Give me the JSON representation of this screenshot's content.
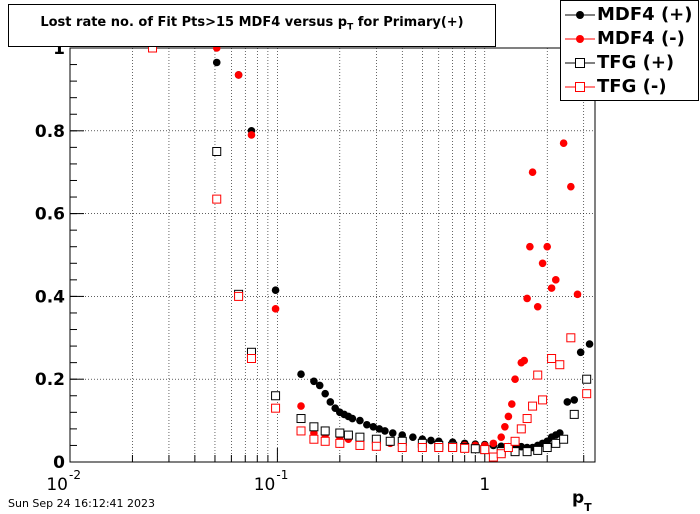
{
  "title": "Lost rate no. of Fit Pts>15 MDF4 versus p",
  "title_sub": "T",
  "title_suffix": " for Primary(+)",
  "timestamp": "Sun Sep 24 16:12:41 2023",
  "xaxis_label": "p",
  "xaxis_sub": "T",
  "chart_data": {
    "type": "scatter",
    "x_scale": "log",
    "xlim": [
      0.01,
      3.4
    ],
    "ylim": [
      0,
      1.0
    ],
    "grid": true,
    "legend_position": "top-right",
    "y_ticks": [
      {
        "value": 0,
        "label": "0"
      },
      {
        "value": 0.2,
        "label": "0.2"
      },
      {
        "value": 0.4,
        "label": "0.4"
      },
      {
        "value": 0.6,
        "label": "0.6"
      },
      {
        "value": 0.8,
        "label": "0.8"
      },
      {
        "value": 1,
        "label": "1"
      }
    ],
    "x_ticks": [
      {
        "value": 0.01,
        "base": "10",
        "exp": "-2"
      },
      {
        "value": 0.1,
        "base": "10",
        "exp": "-1"
      },
      {
        "value": 1,
        "base": "1",
        "exp": ""
      }
    ],
    "series": [
      {
        "name": "MDF4 (+)",
        "color": "#000000",
        "marker": "filled-circle",
        "points": [
          [
            0.051,
            0.965
          ],
          [
            0.065,
            0.935
          ],
          [
            0.075,
            0.8
          ],
          [
            0.098,
            0.415
          ],
          [
            0.13,
            0.212
          ],
          [
            0.15,
            0.195
          ],
          [
            0.16,
            0.185
          ],
          [
            0.17,
            0.165
          ],
          [
            0.18,
            0.145
          ],
          [
            0.19,
            0.13
          ],
          [
            0.2,
            0.12
          ],
          [
            0.21,
            0.115
          ],
          [
            0.22,
            0.11
          ],
          [
            0.23,
            0.105
          ],
          [
            0.25,
            0.1
          ],
          [
            0.27,
            0.09
          ],
          [
            0.29,
            0.085
          ],
          [
            0.31,
            0.08
          ],
          [
            0.33,
            0.075
          ],
          [
            0.36,
            0.07
          ],
          [
            0.4,
            0.065
          ],
          [
            0.45,
            0.06
          ],
          [
            0.5,
            0.055
          ],
          [
            0.55,
            0.052
          ],
          [
            0.6,
            0.05
          ],
          [
            0.7,
            0.048
          ],
          [
            0.8,
            0.045
          ],
          [
            0.9,
            0.043
          ],
          [
            1.0,
            0.042
          ],
          [
            1.1,
            0.04
          ],
          [
            1.2,
            0.038
          ],
          [
            1.3,
            0.037
          ],
          [
            1.4,
            0.038
          ],
          [
            1.5,
            0.037
          ],
          [
            1.6,
            0.035
          ],
          [
            1.7,
            0.035
          ],
          [
            1.8,
            0.04
          ],
          [
            1.9,
            0.045
          ],
          [
            2.0,
            0.05
          ],
          [
            2.1,
            0.06
          ],
          [
            2.2,
            0.065
          ],
          [
            2.3,
            0.07
          ],
          [
            2.5,
            0.145
          ],
          [
            2.7,
            0.15
          ],
          [
            2.9,
            0.265
          ],
          [
            3.2,
            0.285
          ]
        ]
      },
      {
        "name": "MDF4 (-)",
        "color": "#ff0000",
        "marker": "filled-circle",
        "points": [
          [
            0.051,
            1.0
          ],
          [
            0.065,
            0.935
          ],
          [
            0.075,
            0.79
          ],
          [
            0.098,
            0.37
          ],
          [
            0.13,
            0.135
          ],
          [
            0.15,
            0.07
          ],
          [
            0.17,
            0.065
          ],
          [
            0.2,
            0.06
          ],
          [
            0.22,
            0.055
          ],
          [
            0.25,
            0.05
          ],
          [
            0.3,
            0.05
          ],
          [
            0.35,
            0.045
          ],
          [
            0.4,
            0.045
          ],
          [
            0.5,
            0.042
          ],
          [
            0.6,
            0.04
          ],
          [
            0.7,
            0.04
          ],
          [
            0.8,
            0.04
          ],
          [
            0.9,
            0.04
          ],
          [
            1.0,
            0.04
          ],
          [
            1.1,
            0.045
          ],
          [
            1.2,
            0.06
          ],
          [
            1.25,
            0.085
          ],
          [
            1.3,
            0.11
          ],
          [
            1.35,
            0.14
          ],
          [
            1.4,
            0.2
          ],
          [
            1.5,
            0.24
          ],
          [
            1.55,
            0.245
          ],
          [
            1.6,
            0.395
          ],
          [
            1.65,
            0.52
          ],
          [
            1.7,
            0.7
          ],
          [
            1.8,
            0.375
          ],
          [
            1.9,
            0.48
          ],
          [
            2.0,
            0.52
          ],
          [
            2.1,
            0.42
          ],
          [
            2.2,
            0.44
          ],
          [
            2.4,
            0.77
          ],
          [
            2.6,
            0.665
          ],
          [
            2.8,
            0.405
          ]
        ]
      },
      {
        "name": "TFG (+)",
        "color": "#000000",
        "marker": "open-square",
        "points": [
          [
            0.051,
            0.75
          ],
          [
            0.065,
            0.405
          ],
          [
            0.075,
            0.265
          ],
          [
            0.098,
            0.16
          ],
          [
            0.13,
            0.105
          ],
          [
            0.15,
            0.085
          ],
          [
            0.17,
            0.075
          ],
          [
            0.2,
            0.07
          ],
          [
            0.22,
            0.065
          ],
          [
            0.25,
            0.06
          ],
          [
            0.3,
            0.055
          ],
          [
            0.35,
            0.05
          ],
          [
            0.4,
            0.05
          ],
          [
            0.5,
            0.045
          ],
          [
            0.6,
            0.04
          ],
          [
            0.7,
            0.038
          ],
          [
            0.8,
            0.035
          ],
          [
            0.9,
            0.032
          ],
          [
            1.0,
            0.03
          ],
          [
            1.2,
            0.025
          ],
          [
            1.4,
            0.025
          ],
          [
            1.6,
            0.025
          ],
          [
            1.8,
            0.028
          ],
          [
            2.0,
            0.035
          ],
          [
            2.2,
            0.045
          ],
          [
            2.4,
            0.055
          ],
          [
            2.7,
            0.115
          ],
          [
            3.1,
            0.2
          ]
        ]
      },
      {
        "name": "TFG (-)",
        "color": "#ff0000",
        "marker": "open-square",
        "points": [
          [
            0.025,
            1.0
          ],
          [
            0.051,
            0.635
          ],
          [
            0.065,
            0.4
          ],
          [
            0.075,
            0.25
          ],
          [
            0.098,
            0.13
          ],
          [
            0.13,
            0.075
          ],
          [
            0.15,
            0.055
          ],
          [
            0.17,
            0.05
          ],
          [
            0.2,
            0.045
          ],
          [
            0.25,
            0.04
          ],
          [
            0.3,
            0.038
          ],
          [
            0.4,
            0.035
          ],
          [
            0.5,
            0.035
          ],
          [
            0.6,
            0.035
          ],
          [
            0.7,
            0.035
          ],
          [
            0.8,
            0.033
          ],
          [
            1.0,
            0.03
          ],
          [
            1.1,
            0.012
          ],
          [
            1.2,
            0.02
          ],
          [
            1.3,
            0.035
          ],
          [
            1.4,
            0.05
          ],
          [
            1.5,
            0.08
          ],
          [
            1.6,
            0.105
          ],
          [
            1.7,
            0.135
          ],
          [
            1.8,
            0.21
          ],
          [
            1.9,
            0.15
          ],
          [
            2.1,
            0.25
          ],
          [
            2.3,
            0.235
          ],
          [
            2.6,
            0.3
          ],
          [
            3.1,
            0.165
          ]
        ]
      }
    ]
  }
}
